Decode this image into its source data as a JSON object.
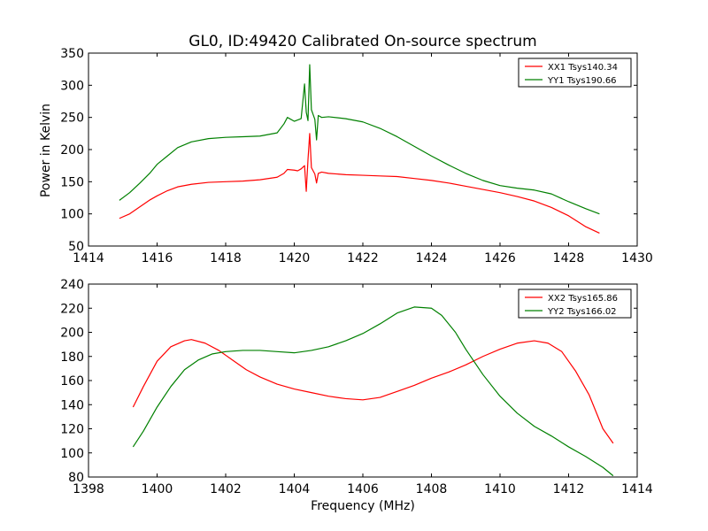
{
  "chart_data": [
    {
      "type": "line",
      "title": "GL0, ID:49420 Calibrated On-source spectrum",
      "xlabel": "",
      "ylabel": "Power in Kelvin",
      "xlim": [
        1414,
        1430
      ],
      "ylim": [
        50,
        350
      ],
      "xticks": [
        1414,
        1416,
        1418,
        1420,
        1422,
        1424,
        1426,
        1428,
        1430
      ],
      "yticks": [
        50,
        100,
        150,
        200,
        250,
        300,
        350
      ],
      "legend_position": "top-right",
      "grid": false,
      "series": [
        {
          "name": "XX1 Tsys140.34",
          "color": "#ff0000",
          "points": [
            [
              1414.9,
              93
            ],
            [
              1415.2,
              100
            ],
            [
              1415.5,
              111
            ],
            [
              1415.8,
              122
            ],
            [
              1416.0,
              128
            ],
            [
              1416.3,
              136
            ],
            [
              1416.6,
              142
            ],
            [
              1417.0,
              146
            ],
            [
              1417.5,
              149
            ],
            [
              1418.0,
              150
            ],
            [
              1418.5,
              151
            ],
            [
              1419.0,
              153
            ],
            [
              1419.5,
              157
            ],
            [
              1419.7,
              163
            ],
            [
              1419.8,
              169
            ],
            [
              1420.0,
              168
            ],
            [
              1420.1,
              167
            ],
            [
              1420.2,
              170
            ],
            [
              1420.3,
              175
            ],
            [
              1420.35,
              135
            ],
            [
              1420.4,
              184
            ],
            [
              1420.45,
              225
            ],
            [
              1420.5,
              172
            ],
            [
              1420.6,
              162
            ],
            [
              1420.65,
              148
            ],
            [
              1420.7,
              163
            ],
            [
              1420.8,
              165
            ],
            [
              1421.0,
              163
            ],
            [
              1421.5,
              161
            ],
            [
              1422.0,
              160
            ],
            [
              1422.5,
              159
            ],
            [
              1423.0,
              158
            ],
            [
              1423.5,
              155
            ],
            [
              1424.0,
              152
            ],
            [
              1424.5,
              148
            ],
            [
              1425.0,
              143
            ],
            [
              1425.5,
              138
            ],
            [
              1426.0,
              133
            ],
            [
              1426.5,
              127
            ],
            [
              1427.0,
              120
            ],
            [
              1427.5,
              110
            ],
            [
              1428.0,
              97
            ],
            [
              1428.5,
              80
            ],
            [
              1428.9,
              70
            ]
          ]
        },
        {
          "name": "YY1 Tsys190.66",
          "color": "#008000",
          "points": [
            [
              1414.9,
              121
            ],
            [
              1415.2,
              133
            ],
            [
              1415.5,
              148
            ],
            [
              1415.8,
              164
            ],
            [
              1416.0,
              177
            ],
            [
              1416.3,
              190
            ],
            [
              1416.6,
              203
            ],
            [
              1417.0,
              212
            ],
            [
              1417.5,
              217
            ],
            [
              1418.0,
              219
            ],
            [
              1418.5,
              220
            ],
            [
              1419.0,
              221
            ],
            [
              1419.5,
              226
            ],
            [
              1419.7,
              240
            ],
            [
              1419.8,
              250
            ],
            [
              1420.0,
              244
            ],
            [
              1420.2,
              248
            ],
            [
              1420.3,
              302
            ],
            [
              1420.35,
              258
            ],
            [
              1420.4,
              245
            ],
            [
              1420.45,
              332
            ],
            [
              1420.5,
              262
            ],
            [
              1420.6,
              247
            ],
            [
              1420.65,
              215
            ],
            [
              1420.7,
              253
            ],
            [
              1420.8,
              250
            ],
            [
              1421.0,
              251
            ],
            [
              1421.5,
              248
            ],
            [
              1422.0,
              243
            ],
            [
              1422.5,
              233
            ],
            [
              1423.0,
              220
            ],
            [
              1423.5,
              205
            ],
            [
              1424.0,
              190
            ],
            [
              1424.5,
              176
            ],
            [
              1425.0,
              163
            ],
            [
              1425.5,
              152
            ],
            [
              1426.0,
              144
            ],
            [
              1426.5,
              140
            ],
            [
              1427.0,
              137
            ],
            [
              1427.5,
              131
            ],
            [
              1428.0,
              119
            ],
            [
              1428.5,
              108
            ],
            [
              1428.9,
              100
            ]
          ]
        }
      ]
    },
    {
      "type": "line",
      "title": "",
      "xlabel": "Frequency (MHz)",
      "ylabel": "",
      "xlim": [
        1398,
        1414
      ],
      "ylim": [
        80,
        240
      ],
      "xticks": [
        1398,
        1400,
        1402,
        1404,
        1406,
        1408,
        1410,
        1412,
        1414
      ],
      "yticks": [
        80,
        100,
        120,
        140,
        160,
        180,
        200,
        220,
        240
      ],
      "legend_position": "top-right",
      "grid": false,
      "series": [
        {
          "name": "XX2 Tsys165.86",
          "color": "#ff0000",
          "points": [
            [
              1399.3,
              138
            ],
            [
              1399.6,
              155
            ],
            [
              1400.0,
              176
            ],
            [
              1400.4,
              188
            ],
            [
              1400.8,
              193
            ],
            [
              1401.0,
              194
            ],
            [
              1401.4,
              191
            ],
            [
              1401.8,
              185
            ],
            [
              1402.2,
              177
            ],
            [
              1402.6,
              169
            ],
            [
              1403.0,
              163
            ],
            [
              1403.5,
              157
            ],
            [
              1404.0,
              153
            ],
            [
              1404.5,
              150
            ],
            [
              1405.0,
              147
            ],
            [
              1405.5,
              145
            ],
            [
              1406.0,
              144
            ],
            [
              1406.5,
              146
            ],
            [
              1407.0,
              151
            ],
            [
              1407.5,
              156
            ],
            [
              1408.0,
              162
            ],
            [
              1408.5,
              167
            ],
            [
              1409.0,
              173
            ],
            [
              1409.5,
              180
            ],
            [
              1410.0,
              186
            ],
            [
              1410.5,
              191
            ],
            [
              1411.0,
              193
            ],
            [
              1411.4,
              191
            ],
            [
              1411.8,
              184
            ],
            [
              1412.2,
              168
            ],
            [
              1412.6,
              148
            ],
            [
              1413.0,
              120
            ],
            [
              1413.3,
              108
            ]
          ]
        },
        {
          "name": "YY2 Tsys166.02",
          "color": "#008000",
          "points": [
            [
              1399.3,
              105
            ],
            [
              1399.6,
              118
            ],
            [
              1400.0,
              138
            ],
            [
              1400.4,
              155
            ],
            [
              1400.8,
              169
            ],
            [
              1401.2,
              177
            ],
            [
              1401.6,
              182
            ],
            [
              1402.0,
              184
            ],
            [
              1402.5,
              185
            ],
            [
              1403.0,
              185
            ],
            [
              1403.5,
              184
            ],
            [
              1404.0,
              183
            ],
            [
              1404.5,
              185
            ],
            [
              1405.0,
              188
            ],
            [
              1405.5,
              193
            ],
            [
              1406.0,
              199
            ],
            [
              1406.5,
              207
            ],
            [
              1407.0,
              216
            ],
            [
              1407.5,
              221
            ],
            [
              1408.0,
              220
            ],
            [
              1408.3,
              214
            ],
            [
              1408.7,
              200
            ],
            [
              1409.0,
              186
            ],
            [
              1409.5,
              165
            ],
            [
              1410.0,
              147
            ],
            [
              1410.5,
              133
            ],
            [
              1411.0,
              122
            ],
            [
              1411.5,
              114
            ],
            [
              1412.0,
              105
            ],
            [
              1412.5,
              97
            ],
            [
              1413.0,
              88
            ],
            [
              1413.3,
              81
            ]
          ]
        }
      ]
    }
  ]
}
